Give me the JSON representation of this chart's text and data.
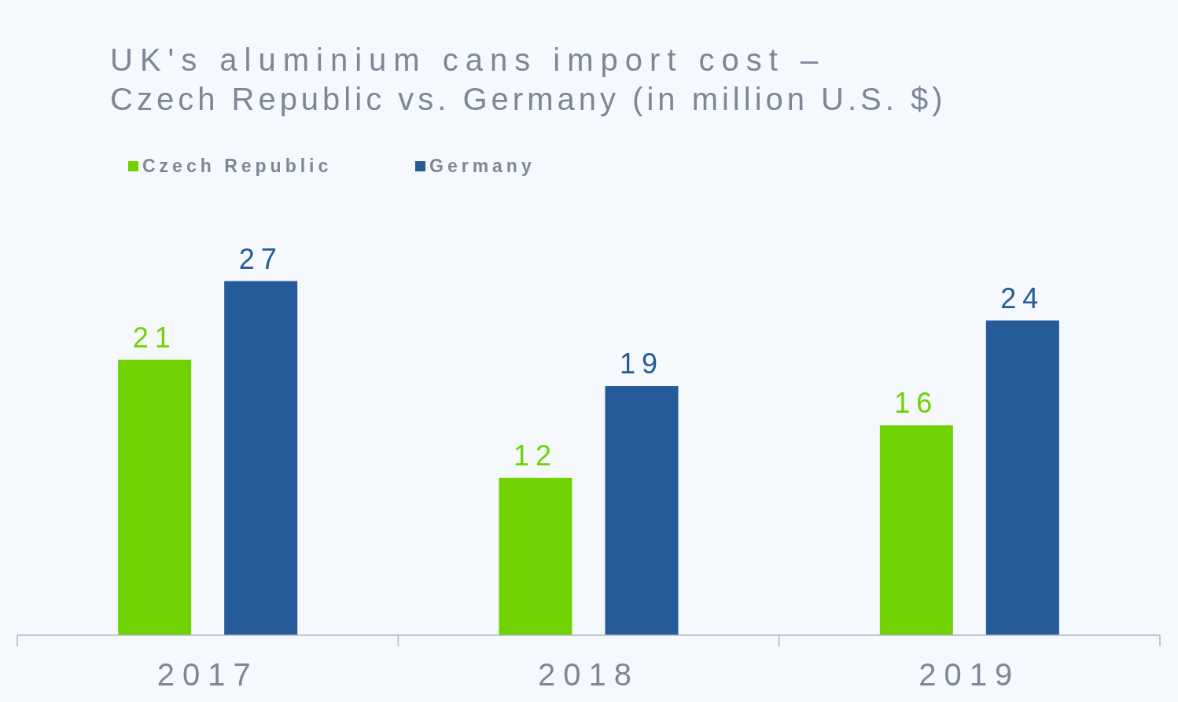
{
  "chart_data": {
    "type": "bar",
    "title": "UK's aluminium cans import cost – Czech Republic vs. Germany (in million U.S. $)",
    "categories": [
      "2017",
      "2018",
      "2019"
    ],
    "series": [
      {
        "name": "Czech Republic",
        "color": "#70d200",
        "values": [
          21,
          12,
          16
        ]
      },
      {
        "name": "Germany",
        "color": "#255b98",
        "values": [
          27,
          19,
          24
        ]
      }
    ],
    "relative": false,
    "data_labels": true,
    "legend": "top left"
  }
}
